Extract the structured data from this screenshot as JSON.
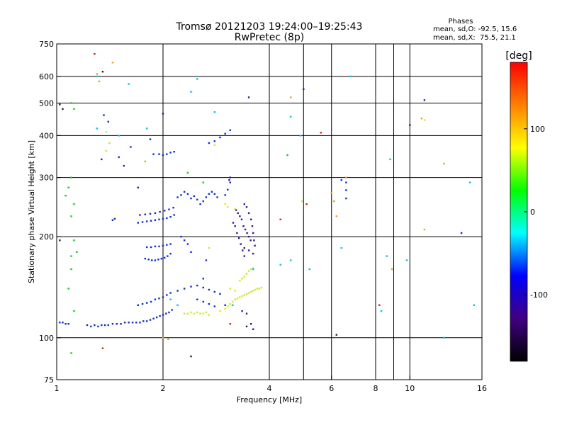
{
  "chart_data": {
    "type": "scatter",
    "title": "Tromsø 20121203 19:24:00–19:25:43",
    "subtitle": "RwPretec (8p)",
    "xlabel": "Frequency [MHz]",
    "ylabel": "Stationary phase Virtual Height [km]",
    "x_scale": "log",
    "y_scale": "log",
    "xlim": [
      1,
      16
    ],
    "ylim": [
      75,
      750
    ],
    "x_ticks": [
      1,
      2,
      4,
      6,
      8,
      10,
      16
    ],
    "y_ticks": [
      75,
      100,
      200,
      300,
      400,
      500,
      600,
      750
    ],
    "x_grid": [
      2,
      4,
      5,
      6,
      8,
      9,
      10
    ],
    "y_grid": [
      100,
      200,
      300,
      400,
      500,
      600
    ],
    "grid": true,
    "stats": {
      "heading": "Phases",
      "line_o": "mean, sd,O: -92.5, 15.6",
      "line_x": "mean, sd,X:  75.5, 21.1"
    },
    "colorbar": {
      "label": "[deg]",
      "range": [
        -180,
        180
      ],
      "ticks": [
        "100",
        "0",
        "-100"
      ],
      "tick_values": [
        100,
        0,
        -100
      ],
      "colors": [
        "#ff0000",
        "#ff8000",
        "#ffff00",
        "#00ff00",
        "#00ffff",
        "#0000ff",
        "#400080",
        "#000000"
      ]
    },
    "series": [
      {
        "values": [
          [
            1.02,
            111
          ],
          [
            1.04,
            111
          ],
          [
            1.06,
            110
          ],
          [
            1.08,
            110
          ],
          [
            1.22,
            109
          ],
          [
            1.25,
            108
          ],
          [
            1.28,
            109
          ],
          [
            1.31,
            108
          ],
          [
            1.34,
            109
          ],
          [
            1.37,
            109
          ],
          [
            1.4,
            109
          ],
          [
            1.44,
            110
          ],
          [
            1.48,
            110
          ],
          [
            1.52,
            110
          ],
          [
            1.56,
            111
          ],
          [
            1.6,
            111
          ],
          [
            1.64,
            111
          ],
          [
            1.68,
            111
          ],
          [
            1.72,
            111
          ],
          [
            1.76,
            112
          ],
          [
            1.8,
            112
          ],
          [
            1.84,
            113
          ],
          [
            1.88,
            114
          ],
          [
            1.92,
            115
          ],
          [
            1.96,
            116
          ],
          [
            2.0,
            117
          ],
          [
            2.04,
            118
          ],
          [
            2.08,
            119
          ],
          [
            2.12,
            121
          ],
          [
            1.7,
            125
          ],
          [
            1.75,
            126
          ],
          [
            1.8,
            127
          ],
          [
            1.85,
            128
          ],
          [
            1.9,
            130
          ],
          [
            1.95,
            131
          ],
          [
            2.0,
            132
          ],
          [
            2.05,
            134
          ],
          [
            2.1,
            136
          ],
          [
            2.2,
            138
          ],
          [
            2.3,
            140
          ],
          [
            2.4,
            142
          ],
          [
            2.5,
            143
          ],
          [
            2.6,
            141
          ],
          [
            2.7,
            139
          ],
          [
            2.8,
            137
          ],
          [
            2.9,
            135
          ],
          [
            1.78,
            172
          ],
          [
            1.82,
            171
          ],
          [
            1.86,
            170
          ],
          [
            1.9,
            170
          ],
          [
            1.94,
            171
          ],
          [
            1.98,
            172
          ],
          [
            2.02,
            173
          ],
          [
            2.06,
            175
          ],
          [
            2.1,
            178
          ],
          [
            1.8,
            186
          ],
          [
            1.85,
            186
          ],
          [
            1.9,
            187
          ],
          [
            1.95,
            187
          ],
          [
            2.0,
            188
          ],
          [
            2.05,
            189
          ],
          [
            2.1,
            190
          ],
          [
            1.7,
            220
          ],
          [
            1.75,
            221
          ],
          [
            1.8,
            222
          ],
          [
            1.85,
            223
          ],
          [
            1.9,
            224
          ],
          [
            1.95,
            225
          ],
          [
            2.0,
            226
          ],
          [
            2.05,
            227
          ],
          [
            2.1,
            229
          ],
          [
            2.15,
            232
          ],
          [
            1.72,
            232
          ],
          [
            1.78,
            233
          ],
          [
            1.84,
            234
          ],
          [
            1.9,
            235
          ],
          [
            1.96,
            237
          ],
          [
            2.02,
            239
          ],
          [
            2.08,
            241
          ],
          [
            2.14,
            244
          ],
          [
            2.2,
            262
          ],
          [
            2.25,
            266
          ],
          [
            2.3,
            272
          ],
          [
            2.35,
            268
          ],
          [
            2.4,
            260
          ],
          [
            2.45,
            264
          ],
          [
            2.5,
            258
          ],
          [
            2.55,
            250
          ],
          [
            2.6,
            255
          ],
          [
            2.65,
            262
          ],
          [
            2.7,
            268
          ],
          [
            2.75,
            272
          ],
          [
            2.8,
            268
          ],
          [
            2.85,
            262
          ],
          [
            3.0,
            266
          ],
          [
            3.05,
            276
          ],
          [
            3.1,
            290
          ],
          [
            1.95,
            352
          ],
          [
            2.0,
            350
          ],
          [
            2.05,
            352
          ],
          [
            2.1,
            356
          ],
          [
            2.15,
            358
          ],
          [
            1.88,
            352
          ],
          [
            2.7,
            380
          ],
          [
            2.8,
            385
          ],
          [
            2.9,
            395
          ],
          [
            3.0,
            405
          ],
          [
            3.1,
            415
          ],
          [
            2.5,
            130
          ],
          [
            2.6,
            128
          ],
          [
            2.7,
            126
          ],
          [
            2.8,
            124
          ],
          [
            3.0,
            125
          ],
          [
            2.25,
            200
          ],
          [
            2.3,
            195
          ],
          [
            2.35,
            190
          ],
          [
            2.4,
            180
          ],
          [
            2.6,
            150
          ],
          [
            2.65,
            170
          ],
          [
            1.44,
            224
          ],
          [
            1.46,
            226
          ],
          [
            1.36,
            460
          ],
          [
            1.4,
            440
          ],
          [
            1.34,
            340
          ],
          [
            1.62,
            370
          ],
          [
            1.84,
            390
          ],
          [
            1.5,
            345
          ],
          [
            1.55,
            325
          ],
          [
            6.6,
            290
          ],
          [
            6.6,
            275
          ],
          [
            6.4,
            295
          ],
          [
            6.6,
            260
          ]
        ],
        "color": "#0a2aee"
      },
      {
        "values": [
          [
            3.16,
            220
          ],
          [
            3.2,
            215
          ],
          [
            3.24,
            205
          ],
          [
            3.28,
            198
          ],
          [
            3.32,
            190
          ],
          [
            3.36,
            182
          ],
          [
            3.4,
            175
          ],
          [
            3.22,
            240
          ],
          [
            3.26,
            235
          ],
          [
            3.3,
            230
          ],
          [
            3.34,
            225
          ],
          [
            3.38,
            215
          ],
          [
            3.42,
            210
          ],
          [
            3.46,
            205
          ],
          [
            3.5,
            200
          ],
          [
            3.54,
            195
          ],
          [
            3.4,
            250
          ],
          [
            3.45,
            245
          ],
          [
            3.5,
            235
          ],
          [
            3.55,
            225
          ],
          [
            3.58,
            215
          ],
          [
            3.6,
            205
          ],
          [
            3.62,
            195
          ],
          [
            3.64,
            188
          ],
          [
            3.4,
            185
          ],
          [
            3.5,
            182
          ],
          [
            3.6,
            178
          ],
          [
            3.35,
            120
          ],
          [
            3.45,
            118
          ],
          [
            3.55,
            110
          ],
          [
            3.6,
            106
          ],
          [
            2.0,
            465
          ],
          [
            3.5,
            520
          ],
          [
            5.0,
            550
          ],
          [
            11.0,
            510
          ],
          [
            14.0,
            205
          ],
          [
            10.0,
            430
          ],
          [
            1.7,
            280
          ],
          [
            3.1,
            300
          ],
          [
            3.08,
            295
          ]
        ],
        "color": "#3a10a8"
      },
      {
        "values": [
          [
            2.3,
            118
          ],
          [
            2.35,
            118
          ],
          [
            2.4,
            119
          ],
          [
            2.45,
            118
          ],
          [
            2.5,
            119
          ],
          [
            2.55,
            118
          ],
          [
            2.6,
            118
          ],
          [
            2.65,
            119
          ],
          [
            2.7,
            117
          ],
          [
            2.9,
            120
          ],
          [
            3.0,
            122
          ],
          [
            3.05,
            124
          ],
          [
            3.1,
            126
          ],
          [
            3.15,
            128
          ],
          [
            3.2,
            130
          ],
          [
            3.25,
            131
          ],
          [
            3.3,
            132
          ],
          [
            3.35,
            133
          ],
          [
            3.4,
            134
          ],
          [
            3.45,
            135
          ],
          [
            3.5,
            136
          ],
          [
            3.55,
            137
          ],
          [
            3.6,
            138
          ],
          [
            3.65,
            139
          ],
          [
            3.7,
            140
          ],
          [
            3.75,
            140
          ],
          [
            3.8,
            141
          ],
          [
            3.3,
            148
          ],
          [
            3.35,
            150
          ],
          [
            3.4,
            152
          ],
          [
            3.45,
            155
          ],
          [
            3.5,
            158
          ],
          [
            3.55,
            160
          ],
          [
            3.6,
            161
          ],
          [
            3.1,
            140
          ],
          [
            3.2,
            138
          ],
          [
            3.0,
            250
          ],
          [
            3.05,
            245
          ],
          [
            3.2,
            242
          ],
          [
            1.38,
            410
          ],
          [
            1.41,
            380
          ],
          [
            1.38,
            360
          ],
          [
            2.8,
            375
          ],
          [
            11.0,
            445
          ],
          [
            4.95,
            255
          ],
          [
            2.7,
            185
          ]
        ],
        "color": "#c8f020"
      },
      {
        "values": [
          [
            1.06,
            265
          ],
          [
            1.08,
            280
          ],
          [
            1.1,
            300
          ],
          [
            1.12,
            250
          ],
          [
            1.1,
            230
          ],
          [
            1.14,
            180
          ],
          [
            1.1,
            160
          ],
          [
            1.08,
            140
          ],
          [
            1.12,
            120
          ],
          [
            1.1,
            500
          ],
          [
            1.12,
            480
          ],
          [
            1.1,
            90
          ],
          [
            4.5,
            350
          ],
          [
            2.35,
            310
          ],
          [
            2.6,
            290
          ],
          [
            1.12,
            195
          ],
          [
            1.1,
            175
          ]
        ],
        "color": "#10d020"
      },
      {
        "values": [
          [
            1.3,
            600
          ],
          [
            1.6,
            570
          ],
          [
            2.4,
            540
          ],
          [
            2.5,
            590
          ],
          [
            1.5,
            400
          ],
          [
            1.8,
            420
          ],
          [
            2.8,
            470
          ],
          [
            4.6,
            455
          ],
          [
            4.9,
            400
          ],
          [
            4.6,
            170
          ],
          [
            5.2,
            160
          ],
          [
            4.3,
            165
          ],
          [
            3.6,
            160
          ],
          [
            6.8,
            600
          ],
          [
            6.4,
            185
          ],
          [
            8.3,
            120
          ],
          [
            8.6,
            175
          ],
          [
            9.8,
            170
          ],
          [
            8.8,
            340
          ],
          [
            12.5,
            100
          ],
          [
            14.8,
            290
          ],
          [
            15.2,
            125
          ],
          [
            1.3,
            420
          ],
          [
            2.1,
            130
          ],
          [
            2.2,
            125
          ],
          [
            3.15,
            125
          ]
        ],
        "color": "#00c8e8"
      },
      {
        "values": [
          [
            1.32,
            580
          ],
          [
            1.44,
            660
          ],
          [
            1.3,
            610
          ],
          [
            4.6,
            520
          ],
          [
            6.6,
            300
          ],
          [
            6.0,
            270
          ],
          [
            6.1,
            255
          ],
          [
            11.0,
            210
          ],
          [
            6.2,
            230
          ],
          [
            8.9,
            160
          ],
          [
            2.0,
            100
          ],
          [
            12.5,
            330
          ],
          [
            1.78,
            335
          ],
          [
            10.8,
            450
          ],
          [
            2.07,
            99
          ]
        ],
        "color": "#f0a020"
      },
      {
        "values": [
          [
            1.35,
            93
          ],
          [
            1.28,
            700
          ],
          [
            5.6,
            408
          ],
          [
            4.3,
            225
          ],
          [
            5.1,
            250
          ],
          [
            8.2,
            125
          ],
          [
            3.1,
            110
          ]
        ],
        "color": "#e82010"
      },
      {
        "values": [
          [
            1.02,
            495
          ],
          [
            1.04,
            480
          ],
          [
            1.35,
            620
          ],
          [
            1.02,
            195
          ],
          [
            2.4,
            88
          ],
          [
            3.45,
            108
          ],
          [
            6.2,
            102
          ]
        ],
        "color": "#202040"
      }
    ]
  }
}
